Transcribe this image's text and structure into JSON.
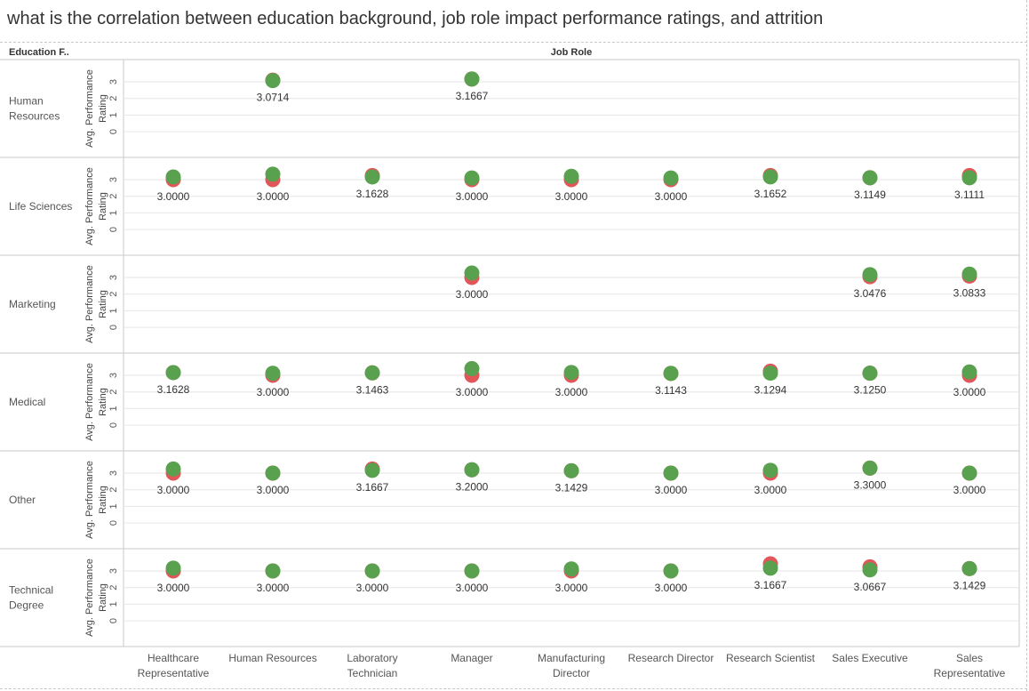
{
  "page": {
    "title": "what is the correlation between education background, job role impact performance ratings, and attrition"
  },
  "header": {
    "row_field": "Education F..",
    "col_field": "Job Role"
  },
  "axis": {
    "label_line1": "Avg. Performance",
    "label_line2": "Rating",
    "ticks": [
      "0",
      "1",
      "2",
      "3"
    ]
  },
  "colors": {
    "attrition_yes": "#e15759",
    "attrition_no": "#59a14f",
    "grid": "#e6e6e6",
    "border": "#c8c8c8"
  },
  "chart_data": {
    "type": "scatter",
    "title": "what is the correlation between education background, job role impact performance ratings, and attrition",
    "row_dimension": "Education F..",
    "column_dimension": "Job Role",
    "ylabel": "Avg. Performance Rating",
    "ylim": [
      0,
      3.5
    ],
    "yticks": [
      0,
      1,
      2,
      3
    ],
    "rows": [
      "Human Resources",
      "Life Sciences",
      "Marketing",
      "Medical",
      "Other",
      "Technical Degree"
    ],
    "row_lines": [
      [
        "Human",
        "Resources"
      ],
      [
        "Life Sciences"
      ],
      [
        "Marketing"
      ],
      [
        "Medical"
      ],
      [
        "Other"
      ],
      [
        "Technical",
        "Degree"
      ]
    ],
    "columns": [
      "Healthcare Representative",
      "Human Resources",
      "Laboratory Technician",
      "Manager",
      "Manufacturing Director",
      "Research Director",
      "Research Scientist",
      "Sales Executive",
      "Sales Representative"
    ],
    "column_lines": [
      [
        "Healthcare",
        "Representative"
      ],
      [
        "Human Resources"
      ],
      [
        "Laboratory",
        "Technician"
      ],
      [
        "Manager"
      ],
      [
        "Manufacturing",
        "Director"
      ],
      [
        "Research Director"
      ],
      [
        "Research Scientist"
      ],
      [
        "Sales Executive"
      ],
      [
        "Sales",
        "Representative"
      ]
    ],
    "series_order": [
      "red",
      "green"
    ],
    "cells": [
      [
        null,
        {
          "red": 3.1,
          "green": 3.0714,
          "label": "3.0714"
        },
        null,
        {
          "red": 3.1667,
          "green": 3.1667,
          "label": "3.1667"
        },
        null,
        null,
        null,
        null,
        null
      ],
      [
        {
          "red": 3.0,
          "green": 3.1628,
          "label": "3.0000"
        },
        {
          "red": 3.0,
          "green": 3.33,
          "label": "3.0000"
        },
        {
          "red": 3.25,
          "green": 3.1628,
          "label": "3.1628"
        },
        {
          "red": 3.0,
          "green": 3.1,
          "label": "3.0000"
        },
        {
          "red": 3.0,
          "green": 3.2,
          "label": "3.0000"
        },
        {
          "red": 3.0,
          "green": 3.1,
          "label": "3.0000"
        },
        {
          "red": 3.25,
          "green": 3.1652,
          "label": "3.1652"
        },
        {
          "red": 3.1149,
          "green": 3.1149,
          "label": "3.1149"
        },
        {
          "red": 3.25,
          "green": 3.1111,
          "label": "3.1111"
        }
      ],
      [
        null,
        null,
        null,
        {
          "red": 3.0,
          "green": 3.27,
          "label": "3.0000"
        },
        null,
        null,
        null,
        {
          "red": 3.0476,
          "green": 3.17,
          "label": "3.0476"
        },
        {
          "red": 3.0833,
          "green": 3.2,
          "label": "3.0833"
        }
      ],
      [
        {
          "red": 3.1628,
          "green": 3.1628,
          "label": "3.1628"
        },
        {
          "red": 3.0,
          "green": 3.12,
          "label": "3.0000"
        },
        {
          "red": 3.1463,
          "green": 3.1463,
          "label": "3.1463"
        },
        {
          "red": 3.0,
          "green": 3.4,
          "label": "3.0000"
        },
        {
          "red": 3.0,
          "green": 3.17,
          "label": "3.0000"
        },
        {
          "red": 3.1143,
          "green": 3.1143,
          "label": "3.1143"
        },
        {
          "red": 3.25,
          "green": 3.1294,
          "label": "3.1294"
        },
        {
          "red": 3.125,
          "green": 3.125,
          "label": "3.1250"
        },
        {
          "red": 3.0,
          "green": 3.2,
          "label": "3.0000"
        }
      ],
      [
        {
          "red": 3.0,
          "green": 3.25,
          "label": "3.0000"
        },
        {
          "red": 3.0,
          "green": 3.0,
          "label": "3.0000"
        },
        {
          "red": 3.25,
          "green": 3.1667,
          "label": "3.1667"
        },
        {
          "red": 3.2,
          "green": 3.2,
          "label": "3.2000"
        },
        {
          "red": 3.1429,
          "green": 3.1429,
          "label": "3.1429"
        },
        {
          "red": 3.0,
          "green": 3.0,
          "label": "3.0000"
        },
        {
          "red": 3.0,
          "green": 3.17,
          "label": "3.0000"
        },
        {
          "red": 3.3,
          "green": 3.3,
          "label": "3.3000"
        },
        {
          "red": 3.0,
          "green": 3.0,
          "label": "3.0000"
        }
      ],
      [
        {
          "red": 3.0,
          "green": 3.17,
          "label": "3.0000"
        },
        {
          "red": 3.0,
          "green": 3.0,
          "label": "3.0000"
        },
        {
          "red": 3.0,
          "green": 3.0,
          "label": "3.0000"
        },
        {
          "red": 3.0,
          "green": 3.0,
          "label": "3.0000"
        },
        {
          "red": 3.0,
          "green": 3.12,
          "label": "3.0000"
        },
        {
          "red": 3.0,
          "green": 3.0,
          "label": "3.0000"
        },
        {
          "red": 3.43,
          "green": 3.1667,
          "label": "3.1667"
        },
        {
          "red": 3.25,
          "green": 3.0667,
          "label": "3.0667"
        },
        {
          "red": 3.1429,
          "green": 3.1429,
          "label": "3.1429"
        }
      ]
    ]
  }
}
